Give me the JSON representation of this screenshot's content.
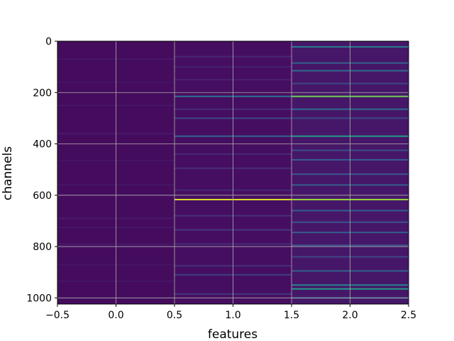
{
  "chart_data": {
    "type": "heatmap",
    "xlabel": "features",
    "ylabel": "channels",
    "xlim": [
      -0.5,
      2.5
    ],
    "ylim": [
      1024,
      0
    ],
    "y_inverted": true,
    "x_ticks": [
      -0.5,
      0.0,
      0.5,
      1.0,
      1.5,
      2.0,
      2.5
    ],
    "x_tick_labels": [
      "−0.5",
      "0.0",
      "0.5",
      "1.0",
      "1.5",
      "2.0",
      "2.5"
    ],
    "y_ticks": [
      0,
      200,
      400,
      600,
      800,
      1000
    ],
    "y_tick_labels": [
      "0",
      "200",
      "400",
      "600",
      "800",
      "1000"
    ],
    "grid": true,
    "colormap": "viridis",
    "columns": [
      {
        "feature": 0,
        "base_value": 0.04,
        "bright_rows": [
          {
            "channel": 70,
            "value": 0.08
          },
          {
            "channel": 160,
            "value": 0.07
          },
          {
            "channel": 250,
            "value": 0.08
          },
          {
            "channel": 360,
            "value": 0.09
          },
          {
            "channel": 465,
            "value": 0.07
          },
          {
            "channel": 560,
            "value": 0.08
          },
          {
            "channel": 690,
            "value": 0.09
          },
          {
            "channel": 725,
            "value": 0.08
          },
          {
            "channel": 790,
            "value": 0.08
          },
          {
            "channel": 870,
            "value": 0.07
          },
          {
            "channel": 935,
            "value": 0.08
          }
        ]
      },
      {
        "feature": 1,
        "base_value": 0.05,
        "bright_rows": [
          {
            "channel": 60,
            "value": 0.14
          },
          {
            "channel": 100,
            "value": 0.12
          },
          {
            "channel": 150,
            "value": 0.12
          },
          {
            "channel": 215,
            "value": 0.38
          },
          {
            "channel": 265,
            "value": 0.15
          },
          {
            "channel": 300,
            "value": 0.22
          },
          {
            "channel": 370,
            "value": 0.32
          },
          {
            "channel": 440,
            "value": 0.14
          },
          {
            "channel": 495,
            "value": 0.15
          },
          {
            "channel": 580,
            "value": 0.14
          },
          {
            "channel": 617,
            "value": 0.95
          },
          {
            "channel": 680,
            "value": 0.16
          },
          {
            "channel": 735,
            "value": 0.18
          },
          {
            "channel": 790,
            "value": 0.15
          },
          {
            "channel": 875,
            "value": 0.16
          },
          {
            "channel": 910,
            "value": 0.2
          },
          {
            "channel": 985,
            "value": 0.18
          }
        ]
      },
      {
        "feature": 2,
        "base_value": 0.08,
        "bright_rows": [
          {
            "channel": 22,
            "value": 0.42
          },
          {
            "channel": 85,
            "value": 0.3
          },
          {
            "channel": 115,
            "value": 0.35
          },
          {
            "channel": 165,
            "value": 0.22
          },
          {
            "channel": 215,
            "value": 0.78
          },
          {
            "channel": 265,
            "value": 0.34
          },
          {
            "channel": 300,
            "value": 0.22
          },
          {
            "channel": 370,
            "value": 0.55
          },
          {
            "channel": 425,
            "value": 0.24
          },
          {
            "channel": 462,
            "value": 0.3
          },
          {
            "channel": 518,
            "value": 0.28
          },
          {
            "channel": 560,
            "value": 0.3
          },
          {
            "channel": 617,
            "value": 0.85
          },
          {
            "channel": 660,
            "value": 0.3
          },
          {
            "channel": 705,
            "value": 0.26
          },
          {
            "channel": 745,
            "value": 0.3
          },
          {
            "channel": 795,
            "value": 0.26
          },
          {
            "channel": 840,
            "value": 0.22
          },
          {
            "channel": 895,
            "value": 0.32
          },
          {
            "channel": 950,
            "value": 0.45
          },
          {
            "channel": 965,
            "value": 0.55
          },
          {
            "channel": 1000,
            "value": 0.3
          }
        ]
      }
    ]
  }
}
